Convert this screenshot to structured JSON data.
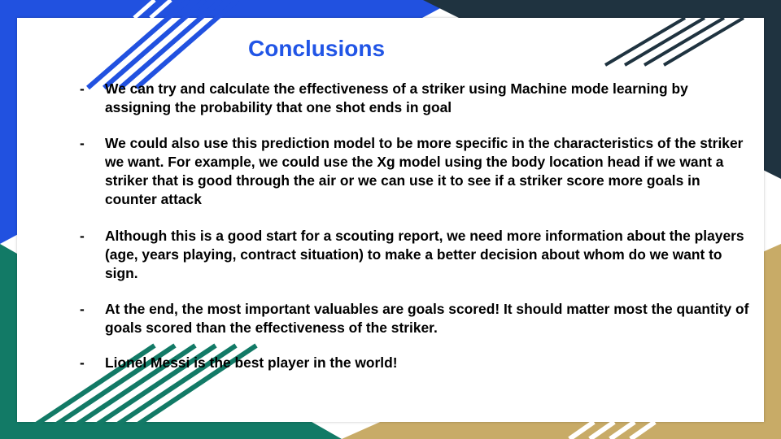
{
  "slide": {
    "title": "Conclusions",
    "bullets": [
      {
        "marker": "-",
        "text": "We can try and calculate the effectiveness of a striker using Machine mode learning by assigning the probability that one shot ends in goal"
      },
      {
        "marker": "-",
        "text": "We could also use this prediction model to be more specific in the characteristics of the striker we want. For example, we could use the Xg model using the body location head if we want a striker that is good through the air or we can use it to see if a striker score more goals in counter attack"
      },
      {
        "marker": "-",
        "text": "Although this is a good start for a scouting report, we need more information about the players (age, years playing, contract situation) to make a better decision about whom do we want to sign."
      },
      {
        "marker": "-",
        "text": "At the end, the most important valuables are goals scored! It should matter most the quantity of goals scored than the effectiveness of the striker."
      },
      {
        "marker": "-",
        "text": "Lionel Messi is the best player in the world!"
      }
    ]
  },
  "colors": {
    "title": "#2155e6",
    "blue": "#2151e0",
    "navy": "#1f3340",
    "green": "#127a66",
    "gold": "#c8ab67",
    "text": "#000000"
  }
}
